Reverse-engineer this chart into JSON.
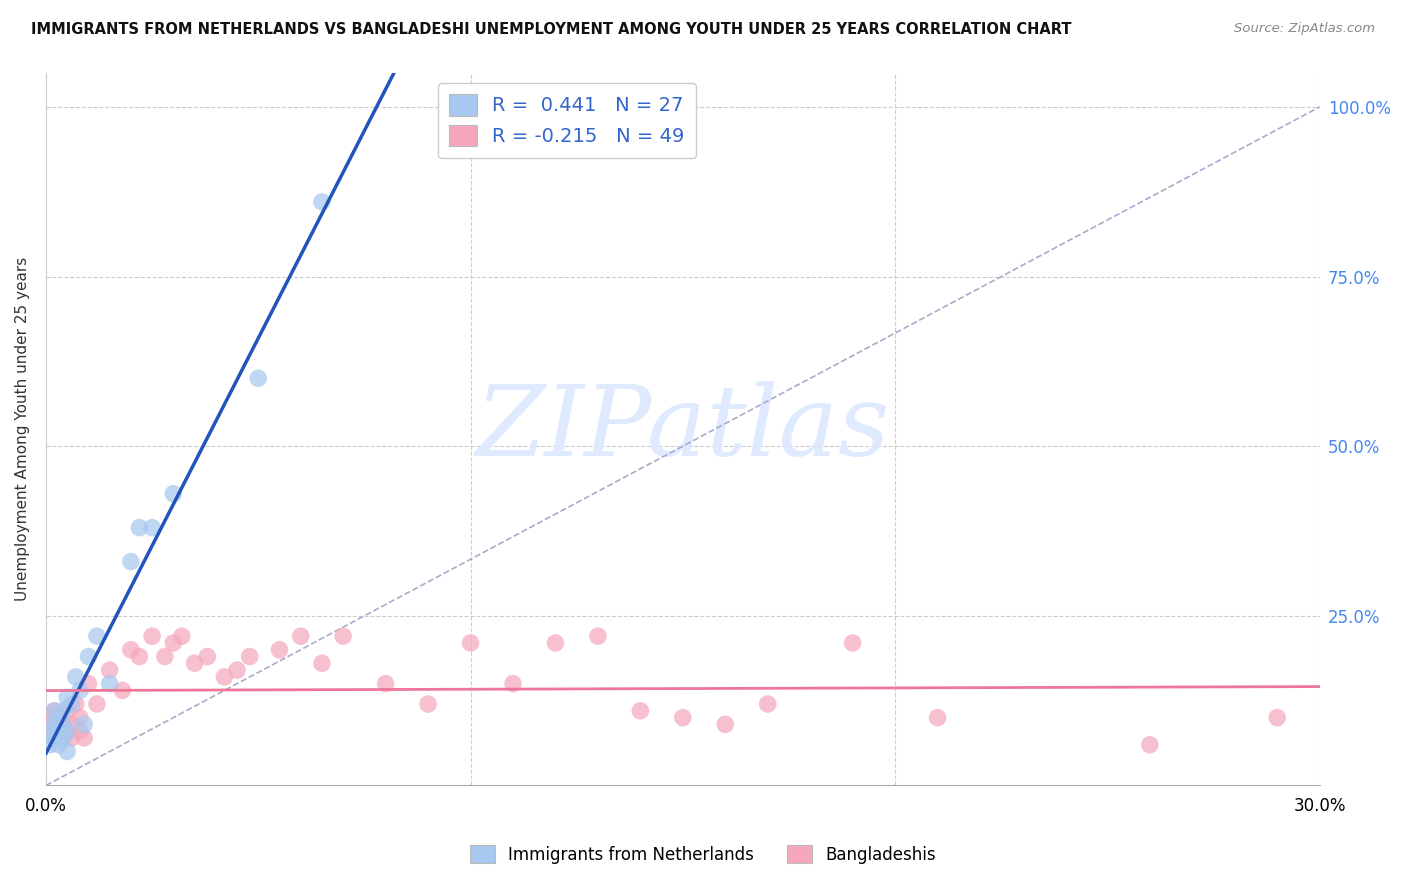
{
  "title": "IMMIGRANTS FROM NETHERLANDS VS BANGLADESHI UNEMPLOYMENT AMONG YOUTH UNDER 25 YEARS CORRELATION CHART",
  "source": "Source: ZipAtlas.com",
  "ylabel": "Unemployment Among Youth under 25 years",
  "legend_labels": [
    "Immigrants from Netherlands",
    "Bangladeshis"
  ],
  "color_blue": "#A8C8F0",
  "color_pink": "#F5A8BC",
  "line_blue": "#2255BB",
  "line_pink": "#EE7799",
  "line_diag_color": "#AAAACC",
  "line_diag_style": "--",
  "watermark_text": "ZIPatlas",
  "watermark_color": "#DCE8FF",
  "xlim": [
    0.0,
    0.3
  ],
  "ylim": [
    0.0,
    1.05
  ],
  "xticks": [
    0.0,
    0.1,
    0.2,
    0.3
  ],
  "yticks": [
    0.25,
    0.5,
    0.75,
    1.0
  ],
  "blue_x": [
    0.001,
    0.001,
    0.002,
    0.002,
    0.002,
    0.003,
    0.003,
    0.003,
    0.004,
    0.004,
    0.004,
    0.005,
    0.005,
    0.005,
    0.006,
    0.007,
    0.008,
    0.009,
    0.01,
    0.012,
    0.015,
    0.02,
    0.022,
    0.025,
    0.03,
    0.05,
    0.065
  ],
  "blue_y": [
    0.08,
    0.06,
    0.09,
    0.07,
    0.11,
    0.08,
    0.1,
    0.06,
    0.09,
    0.11,
    0.07,
    0.13,
    0.08,
    0.05,
    0.12,
    0.16,
    0.14,
    0.09,
    0.19,
    0.22,
    0.15,
    0.33,
    0.38,
    0.38,
    0.43,
    0.6,
    0.86
  ],
  "pink_x": [
    0.001,
    0.001,
    0.002,
    0.002,
    0.003,
    0.003,
    0.004,
    0.004,
    0.005,
    0.005,
    0.006,
    0.006,
    0.007,
    0.008,
    0.008,
    0.009,
    0.01,
    0.012,
    0.015,
    0.018,
    0.02,
    0.022,
    0.025,
    0.028,
    0.03,
    0.032,
    0.035,
    0.038,
    0.042,
    0.045,
    0.048,
    0.055,
    0.06,
    0.065,
    0.07,
    0.08,
    0.09,
    0.1,
    0.11,
    0.12,
    0.13,
    0.14,
    0.15,
    0.16,
    0.17,
    0.19,
    0.21,
    0.26,
    0.29
  ],
  "pink_y": [
    0.1,
    0.08,
    0.11,
    0.09,
    0.1,
    0.08,
    0.09,
    0.07,
    0.11,
    0.08,
    0.09,
    0.07,
    0.12,
    0.08,
    0.1,
    0.07,
    0.15,
    0.12,
    0.17,
    0.14,
    0.2,
    0.19,
    0.22,
    0.19,
    0.21,
    0.22,
    0.18,
    0.19,
    0.16,
    0.17,
    0.19,
    0.2,
    0.22,
    0.18,
    0.22,
    0.15,
    0.12,
    0.21,
    0.15,
    0.21,
    0.22,
    0.11,
    0.1,
    0.09,
    0.12,
    0.21,
    0.1,
    0.06,
    0.1
  ]
}
